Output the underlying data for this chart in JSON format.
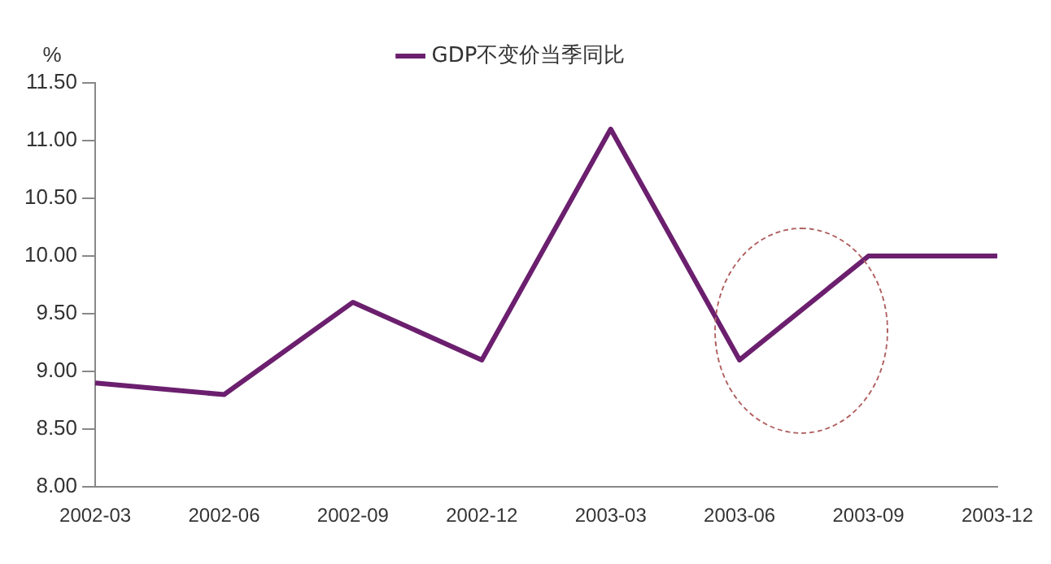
{
  "chart_data": {
    "type": "line",
    "ylabel": "%",
    "categories": [
      "2002-03",
      "2002-06",
      "2002-09",
      "2002-12",
      "2003-03",
      "2003-06",
      "2003-09",
      "2003-12"
    ],
    "series": [
      {
        "name": "GDP不变价当季同比",
        "color": "#6b1f6e",
        "values": [
          8.9,
          8.8,
          9.6,
          9.1,
          11.1,
          9.1,
          10.0,
          10.0
        ]
      }
    ],
    "ylim": [
      8,
      11.5
    ],
    "yticks": [
      {
        "value": 8,
        "label": "8.00"
      },
      {
        "value": 8.5,
        "label": "8.50"
      },
      {
        "value": 9,
        "label": "9.00"
      },
      {
        "value": 9.5,
        "label": "9.50"
      },
      {
        "value": 10,
        "label": "10.00"
      },
      {
        "value": 10.5,
        "label": "10.50"
      },
      {
        "value": 11,
        "label": "11.00"
      },
      {
        "value": 11.5,
        "label": "11.50"
      }
    ],
    "grid": false,
    "legend": "top",
    "marker": "none",
    "line_style": "solid"
  }
}
